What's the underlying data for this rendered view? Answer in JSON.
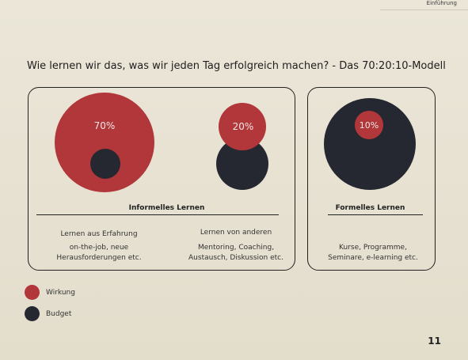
{
  "header": {
    "section": "Einführung"
  },
  "title": "Wie lernen wir das, was wir jeden Tag erfolgreich machen? - Das 70:20:10-Modell",
  "colors": {
    "wirkung": "#b2373a",
    "budget": "#252830"
  },
  "chart_data": {
    "type": "diagram",
    "groups": [
      {
        "label": "Informelles Lernen",
        "items": [
          {
            "percent_label": "70%",
            "title": "Lernen aus Erfahrung",
            "examples": "on-the-job, neue Herausforderungen etc."
          },
          {
            "percent_label": "20%",
            "title": "Lernen von anderen",
            "examples": "Mentoring, Coaching, Austausch, Diskussion etc."
          }
        ]
      },
      {
        "label": "Formelles Lernen",
        "items": [
          {
            "percent_label": "10%",
            "title": "",
            "examples": "Kurse, Programme, Seminare, e-learning etc."
          }
        ]
      }
    ],
    "legend": [
      {
        "label": "Wirkung",
        "color": "#b2373a"
      },
      {
        "label": "Budget",
        "color": "#252830"
      }
    ]
  },
  "page_number": "11"
}
